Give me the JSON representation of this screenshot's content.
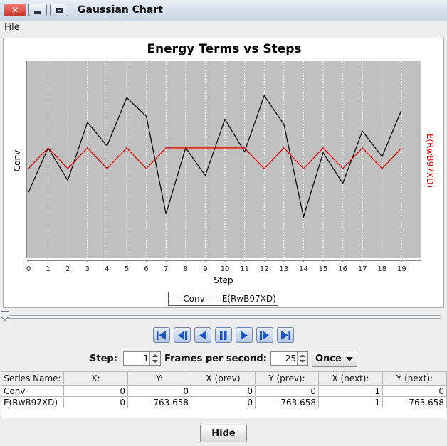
{
  "window": {
    "title": "Gaussian Chart"
  },
  "menu": {
    "file": "File"
  },
  "chart_data": {
    "type": "line",
    "title": "Energy Terms vs Steps",
    "xlabel": "Step",
    "ylabel_left": "Conv",
    "ylabel_right": "E(RwB97XD)",
    "x": [
      0,
      1,
      2,
      3,
      4,
      5,
      6,
      7,
      8,
      9,
      10,
      11,
      12,
      13,
      14,
      15,
      16,
      17,
      18,
      19
    ],
    "grid": true,
    "series": [
      {
        "name": "Conv",
        "color": "#000000",
        "axis": "left",
        "values": [
          0.335,
          0.56,
          0.395,
          0.69,
          0.57,
          0.815,
          0.72,
          0.225,
          0.56,
          0.42,
          0.705,
          0.54,
          0.825,
          0.68,
          0.21,
          0.535,
          0.38,
          0.645,
          0.515,
          0.755
        ]
      },
      {
        "name": "E(RwB97XD)",
        "color": "#e00000",
        "axis": "right",
        "values": [
          0.455,
          0.56,
          0.455,
          0.56,
          0.455,
          0.56,
          0.455,
          0.56,
          0.56,
          0.56,
          0.56,
          0.56,
          0.455,
          0.56,
          0.455,
          0.56,
          0.455,
          0.56,
          0.455,
          0.56
        ]
      }
    ]
  },
  "legend": {
    "series_0": "Conv",
    "series_1": "E(RwB97XD)"
  },
  "controls": {
    "step_label": "Step:",
    "step_value": "1",
    "fps_label": "Frames per second:",
    "fps_value": "25",
    "mode_value": "Once",
    "hide_label": "Hide",
    "slider_value": 0
  },
  "table": {
    "headers": [
      "Series Name:",
      "X:",
      "Y:",
      "X (prev)",
      "Y (prev):",
      "X (next):",
      "Y (next):"
    ],
    "rows": [
      [
        "Conv",
        "0",
        "0",
        "0",
        "0",
        "1",
        "0"
      ],
      [
        "E(RwB97XD)",
        "0",
        "-763.658",
        "0",
        "-763.658",
        "1",
        "-763.658"
      ]
    ]
  }
}
